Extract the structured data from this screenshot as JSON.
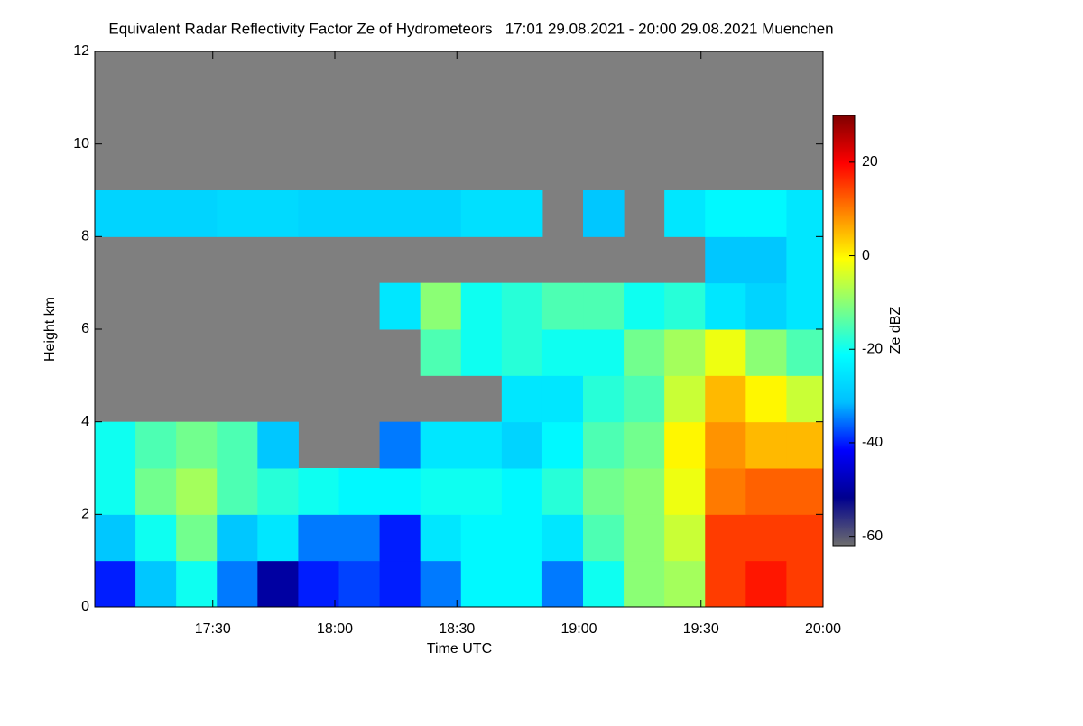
{
  "chart_data": {
    "type": "heatmap",
    "title": "Equivalent Radar Reflectivity Factor Ze of Hydrometeors   17:01 29.08.2021 - 20:00 29.08.2021 Muenchen",
    "x_label": "Time UTC",
    "y_label": "Height km",
    "colorbar_label": "Ze dBZ",
    "xlim": [
      1021,
      1200
    ],
    "xticks": [
      {
        "value": 1050,
        "label": "17:30"
      },
      {
        "value": 1080,
        "label": "18:00"
      },
      {
        "value": 1110,
        "label": "18:30"
      },
      {
        "value": 1140,
        "label": "19:00"
      },
      {
        "value": 1170,
        "label": "19:30"
      },
      {
        "value": 1200,
        "label": "20:00"
      }
    ],
    "ylim": [
      0,
      12
    ],
    "yticks": [
      0,
      2,
      4,
      6,
      8,
      10,
      12
    ],
    "zlim": [
      -62,
      30
    ],
    "zticks": [
      -60,
      -40,
      -20,
      0,
      20
    ],
    "background_color": "#7f7f7f",
    "colormap": [
      "#6e6e6e",
      "#00008f",
      "#0000ff",
      "#00bfff",
      "#00ffff",
      "#80ff80",
      "#ffff00",
      "#ff8000",
      "#ff0000",
      "#800000"
    ],
    "x": [
      1026,
      1036,
      1046,
      1056,
      1066,
      1076,
      1086,
      1096,
      1106,
      1116,
      1126,
      1136,
      1146,
      1156,
      1166,
      1176,
      1186,
      1196
    ],
    "y": [
      0.5,
      1.5,
      2.5,
      3.5,
      4.5,
      5.5,
      6.5,
      7.5,
      8.5,
      9.5,
      10.5,
      11.5
    ],
    "z": [
      [
        -40,
        -30,
        -20,
        -35,
        -50,
        -40,
        -38,
        -40,
        -35,
        -22,
        -22,
        -35,
        -20,
        -10,
        -8,
        15,
        18,
        15
      ],
      [
        -30,
        -20,
        -12,
        -30,
        -25,
        -35,
        -35,
        -40,
        -25,
        -22,
        -22,
        -25,
        -15,
        -10,
        -5,
        15,
        15,
        15
      ],
      [
        -20,
        -12,
        -8,
        -15,
        -18,
        -20,
        -22,
        -22,
        -20,
        -20,
        -22,
        -18,
        -12,
        -10,
        -2,
        10,
        12,
        12
      ],
      [
        -20,
        -15,
        -12,
        -15,
        -30,
        null,
        null,
        -35,
        -25,
        -25,
        -28,
        -22,
        -15,
        -12,
        0,
        8,
        5,
        5
      ],
      [
        null,
        null,
        null,
        null,
        null,
        null,
        null,
        null,
        null,
        null,
        -25,
        -25,
        -18,
        -15,
        -5,
        5,
        0,
        -5
      ],
      [
        null,
        null,
        null,
        null,
        null,
        null,
        null,
        null,
        -15,
        -20,
        -18,
        -20,
        -20,
        -12,
        -8,
        -2,
        -10,
        -15
      ],
      [
        null,
        null,
        null,
        null,
        null,
        null,
        null,
        -25,
        -10,
        -20,
        -18,
        -15,
        -15,
        -20,
        -18,
        -25,
        -28,
        -25
      ],
      [
        null,
        null,
        null,
        null,
        null,
        null,
        null,
        null,
        null,
        null,
        null,
        null,
        null,
        null,
        null,
        -30,
        -30,
        -25
      ],
      [
        -28,
        -28,
        -28,
        -27,
        -27,
        -28,
        -28,
        -28,
        -28,
        -26,
        -26,
        null,
        -30,
        null,
        -25,
        -22,
        -22,
        -25
      ],
      [
        null,
        null,
        null,
        null,
        null,
        null,
        null,
        null,
        null,
        null,
        null,
        null,
        null,
        null,
        null,
        null,
        null,
        null
      ],
      [
        null,
        null,
        null,
        null,
        null,
        null,
        null,
        null,
        null,
        null,
        null,
        null,
        null,
        null,
        null,
        null,
        null,
        null
      ],
      [
        null,
        null,
        null,
        null,
        null,
        null,
        null,
        null,
        null,
        null,
        null,
        null,
        null,
        null,
        null,
        null,
        null,
        null
      ]
    ]
  }
}
